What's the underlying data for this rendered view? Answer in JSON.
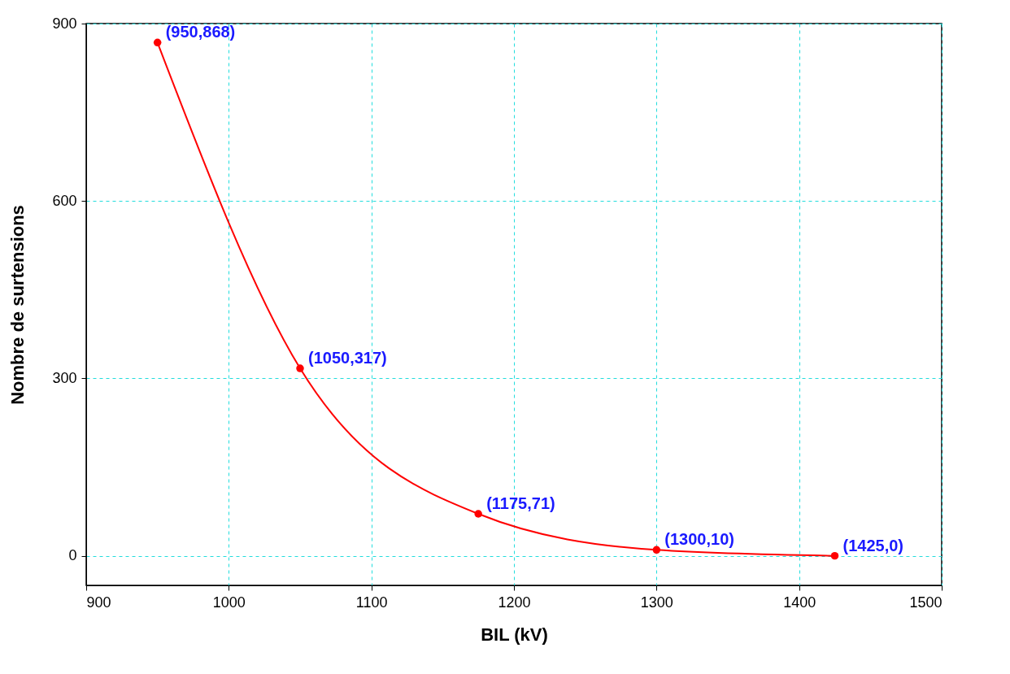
{
  "chart_data": {
    "type": "line",
    "xlabel": "BIL (kV)",
    "ylabel": "Nombre de surtensions",
    "x": [
      950,
      1050,
      1175,
      1300,
      1425
    ],
    "series": [
      {
        "color": "#ff0000",
        "values": [
          868,
          317,
          71,
          10,
          0
        ]
      }
    ],
    "annotations": [
      {
        "text": "(950,868)",
        "x": 950,
        "y": 868
      },
      {
        "text": "(1050,317)",
        "x": 1050,
        "y": 317
      },
      {
        "text": "(1175,71)",
        "x": 1175,
        "y": 71
      },
      {
        "text": "(1300,10)",
        "x": 1300,
        "y": 10
      },
      {
        "text": "(1425,0)",
        "x": 1425,
        "y": 0
      }
    ],
    "xlim": [
      900,
      1500
    ],
    "xticks": [
      900,
      1000,
      1100,
      1200,
      1300,
      1400,
      1500
    ],
    "ylim": [
      -50,
      900
    ],
    "yticks": [
      0,
      300,
      600,
      900
    ],
    "grid": true,
    "marker": "circle",
    "line_style": "solid"
  }
}
